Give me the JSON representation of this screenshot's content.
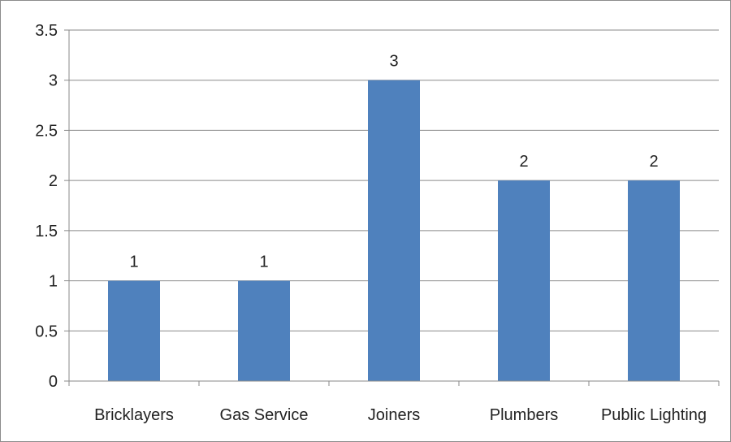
{
  "chart_data": {
    "type": "bar",
    "title": "",
    "xlabel": "",
    "ylabel": "",
    "categories": [
      "Bricklayers",
      "Gas Service",
      "Joiners",
      "Plumbers",
      "Public Lighting"
    ],
    "values": [
      1,
      1,
      3,
      2,
      2
    ],
    "data_labels": [
      "1",
      "1",
      "3",
      "2",
      "2"
    ],
    "ylim": [
      0,
      3.5
    ],
    "yticks": [
      0,
      0.5,
      1,
      1.5,
      2,
      2.5,
      3,
      3.5
    ],
    "ytick_labels": [
      "0",
      "0.5",
      "1",
      "1.5",
      "2",
      "2.5",
      "3",
      "3.5"
    ],
    "grid": true,
    "legend": "none",
    "bar_color": "#4f81bd"
  }
}
